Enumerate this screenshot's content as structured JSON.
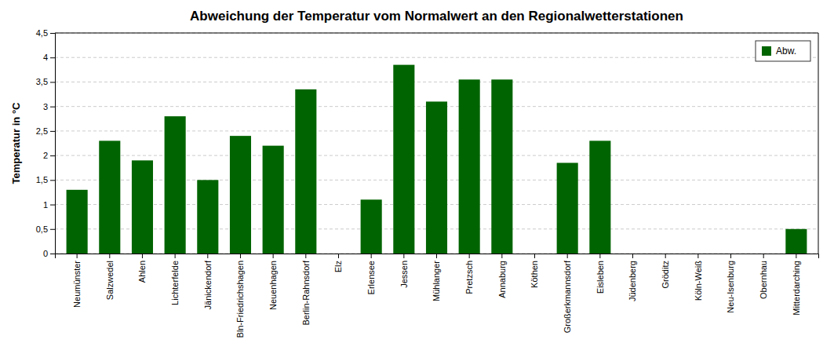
{
  "chart_data": {
    "type": "bar",
    "title": "Abweichung der Temperatur vom Normalwert an den Regionalwetterstationen",
    "ylabel": "Temperatur in °C",
    "categories": [
      "Neumünster",
      "Salzwedel",
      "Ahlen",
      "Lichterfelde",
      "Jänickendorf",
      "Bln-Friedrichshagen",
      "Neuenhagen",
      "Berlin-Rahnsdorf",
      "Elz",
      "Erlensee",
      "Jessen",
      "Mühlanger",
      "Pretzsch",
      "Annaburg",
      "Köthen",
      "Großerkmannsdorf",
      "Eisleben",
      "Jüdenberg",
      "Gröditz",
      "Köln-Weiß",
      "Neu-Isenburg",
      "Obernhau",
      "Mitterdarching"
    ],
    "series": [
      {
        "name": "Abw.",
        "color": "#006400",
        "values": [
          1.3,
          2.3,
          1.9,
          2.8,
          1.5,
          2.4,
          2.2,
          3.35,
          0.0,
          1.1,
          3.85,
          3.1,
          3.55,
          3.55,
          0.0,
          1.85,
          2.3,
          0.0,
          0.0,
          0.0,
          0.0,
          0.0,
          0.5
        ]
      }
    ],
    "ylim": [
      0,
      4.5
    ],
    "yticks": [
      0,
      {
        "value": 0.5,
        "label": "0,5"
      },
      1,
      {
        "value": 1.5,
        "label": "1,5"
      },
      2,
      {
        "value": 2.5,
        "label": "2,5"
      },
      3,
      {
        "value": 3.5,
        "label": "3,5"
      },
      4,
      {
        "value": 4.5,
        "label": "4,5"
      }
    ],
    "grid": true,
    "legend": "upper right"
  }
}
